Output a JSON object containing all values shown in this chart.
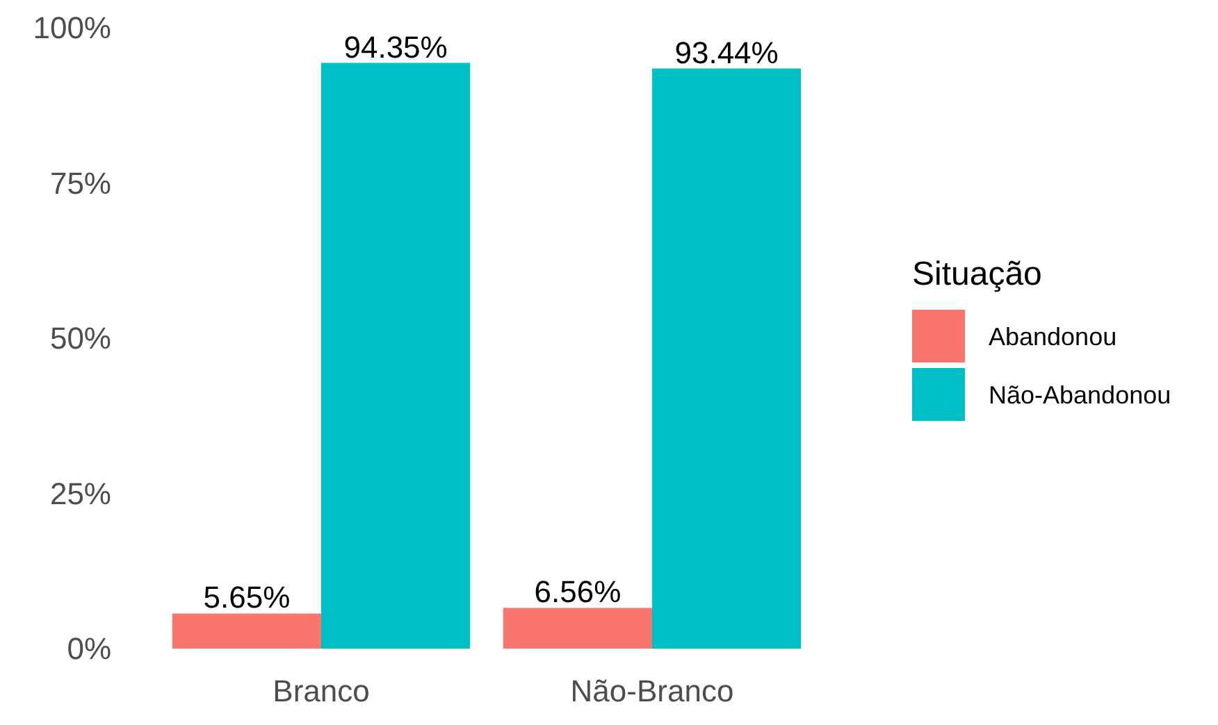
{
  "chart_data": {
    "type": "bar",
    "categories": [
      "Branco",
      "Não-Branco"
    ],
    "series": [
      {
        "name": "Abandonou",
        "color": "#f8766d",
        "values": [
          5.65,
          6.56
        ],
        "value_labels": [
          "5.65%",
          "6.56%"
        ]
      },
      {
        "name": "Não-Abandonou",
        "color": "#00bfc4",
        "values": [
          94.35,
          93.44
        ],
        "value_labels": [
          "94.35%",
          "93.44%"
        ]
      }
    ],
    "ylim": [
      0,
      100
    ],
    "yticks": [
      {
        "value": 0,
        "label": "0%"
      },
      {
        "value": 25,
        "label": "25%"
      },
      {
        "value": 50,
        "label": "50%"
      },
      {
        "value": 75,
        "label": "75%"
      },
      {
        "value": 100,
        "label": "100%"
      }
    ],
    "legend_title": "Situação",
    "legend": "right",
    "grid": false
  }
}
